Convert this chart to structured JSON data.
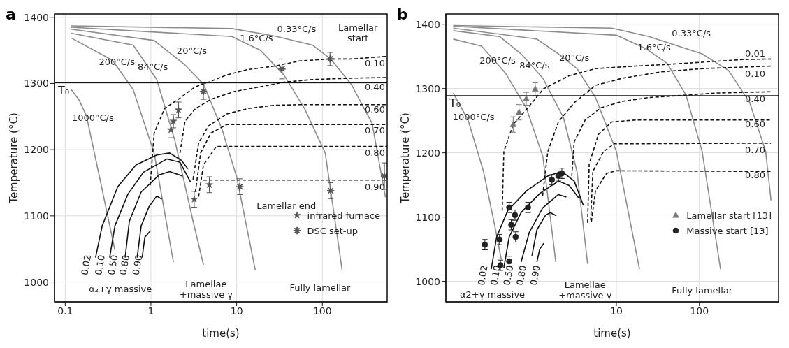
{
  "chart_data": [
    {
      "type": "line",
      "title": "a",
      "xlabel": "time(s)",
      "ylabel": "Temperature (°C)",
      "log": "x",
      "grid": true,
      "legend": "bottom right",
      "xlim": [
        0.075,
        570
      ],
      "xticks": [
        0.1,
        1,
        10,
        100
      ],
      "ylim": [
        970,
        1405
      ],
      "yticks": [
        1000,
        1100,
        1200,
        1300,
        1400
      ],
      "ref_lines": [
        {
          "axis": "y",
          "value": 1301,
          "label": "T₀",
          "color": "#111111"
        }
      ],
      "series": [
        {
          "color": "#8c8c8c",
          "x": [
            0.117,
            0.144,
            0.177,
            0.251,
            0.38
          ],
          "values": [
            1291,
            1276,
            1251,
            1159,
            1048
          ]
        },
        {
          "color": "#8c8c8c",
          "x": [
            0.117,
            0.356,
            0.62,
            1.09,
            1.83
          ],
          "values": [
            1369,
            1335,
            1291,
            1195,
            1030
          ]
        },
        {
          "color": "#8c8c8c",
          "x": [
            0.117,
            0.62,
            1.17,
            1.9,
            3.1,
            4.1
          ],
          "values": [
            1376,
            1358,
            1306,
            1214,
            1092,
            1026
          ]
        },
        {
          "color": "#8c8c8c",
          "x": [
            0.117,
            1.09,
            2.5,
            4.1,
            6.7,
            10,
            16.5
          ],
          "values": [
            1382,
            1365,
            1328,
            1299,
            1232,
            1159,
            1018
          ]
        },
        {
          "color": "#8c8c8c",
          "x": [
            0.117,
            8.8,
            19,
            35.5,
            62,
            108,
            170
          ],
          "values": [
            1385,
            1371,
            1350,
            1313,
            1262,
            1195,
            1018
          ]
        },
        {
          "color": "#8c8c8c",
          "x": [
            0.117,
            8.8,
            27,
            77,
            125,
            217,
            380,
            545
          ],
          "values": [
            1387,
            1383,
            1372,
            1358,
            1337,
            1299,
            1240,
            1128
          ]
        },
        {
          "color": "#111111",
          "line_style": "dashed",
          "x": [
            0.98,
            1.09,
            1.44,
            2.18,
            3.3,
            4.7,
            7.7,
            13.4,
            27,
            54,
            125,
            217,
            570
          ],
          "values": [
            1146,
            1225,
            1262,
            1278,
            1295,
            1302,
            1313,
            1321,
            1326,
            1334,
            1337,
            1337,
            1341
          ]
        },
        {
          "color": "#111111",
          "line_style": "dashed",
          "x": [
            2.18,
            2.5,
            3.3,
            5,
            9.5,
            19,
            35.5,
            77,
            217,
            570
          ],
          "values": [
            1195,
            1243,
            1262,
            1276,
            1288,
            1295,
            1302,
            1306,
            1308,
            1309
          ]
        },
        {
          "color": "#111111",
          "line_style": "dashed",
          "x": [
            3.1,
            3.6,
            4.7,
            7.7,
            13.4,
            27,
            54,
            570
          ],
          "values": [
            1155,
            1210,
            1236,
            1254,
            1262,
            1267,
            1268,
            1268
          ]
        },
        {
          "color": "#111111",
          "line_style": "dashed",
          "x": [
            3.3,
            3.8,
            5,
            7.7,
            570
          ],
          "values": [
            1136,
            1195,
            1225,
            1238,
            1238
          ]
        },
        {
          "color": "#111111",
          "line_style": "dashed",
          "x": [
            3.6,
            4.1,
            5.8,
            570
          ],
          "values": [
            1129,
            1177,
            1205,
            1205
          ]
        },
        {
          "color": "#111111",
          "line_style": "dashed",
          "x": [
            4.1,
            570
          ],
          "values": [
            1154,
            1154
          ]
        },
        {
          "color": "#111111",
          "x": [
            0.226,
            0.27,
            0.41,
            0.67,
            1.17,
            1.65,
            2.26,
            2.7
          ],
          "values": [
            1037,
            1085,
            1144,
            1177,
            1192,
            1195,
            1184,
            1171
          ]
        },
        {
          "color": "#111111",
          "x": [
            0.33,
            0.38,
            0.54,
            0.82,
            1.54,
            2.18,
            2.9
          ],
          "values": [
            1037,
            1085,
            1133,
            1166,
            1186,
            1181,
            1151
          ]
        },
        {
          "color": "#111111",
          "x": [
            0.5,
            0.56,
            0.77,
            1.25,
            1.65,
            2.34
          ],
          "values": [
            1037,
            1092,
            1136,
            1162,
            1167,
            1160
          ]
        },
        {
          "color": "#111111",
          "x": [
            0.69,
            0.77,
            0.95,
            1.17,
            1.34
          ],
          "values": [
            1037,
            1085,
            1114,
            1130,
            1125
          ]
        },
        {
          "color": "#111111",
          "x": [
            0.79,
            0.85,
            0.98
          ],
          "values": [
            1037,
            1068,
            1077
          ]
        },
        {
          "type": "scatter",
          "name": "infrared furnace",
          "marker": "star",
          "color": "#555555",
          "x": [
            1.71,
            1.83,
            2.1,
            3.2,
            4.8
          ],
          "values": [
            1230,
            1243,
            1260,
            1125,
            1147
          ],
          "errors": [
            12,
            10,
            12,
            12,
            12
          ]
        },
        {
          "type": "scatter",
          "name": "DSC set-up",
          "marker": "cross",
          "color": "#555555",
          "x": [
            4.1,
            10.9,
            33.8,
            123,
            125,
            530
          ],
          "values": [
            1288,
            1144,
            1322,
            1337,
            1138,
            1160
          ],
          "errors": [
            12,
            12,
            15,
            10,
            12,
            20
          ]
        }
      ],
      "annotations": [
        "1000°C/s",
        "200°C/s",
        "84°C/s",
        "20°C/s",
        "1.6°C/s",
        "0.33°C/s",
        "0.02",
        "0.10",
        "0.50",
        "0.80",
        "0.90",
        "0.10",
        "0.40",
        "0.60",
        "0.70",
        "0.80",
        "0.90",
        "α₂+γ massive",
        "Lamellae\n+massive γ",
        "Fully lamellar",
        "Lamellar\nstart",
        "Lamellar end"
      ]
    },
    {
      "type": "line",
      "title": "b",
      "xlabel": "time(s)",
      "ylabel": "Temperature (°C)",
      "log": "x",
      "grid": true,
      "legend": "bottom right",
      "xlim": [
        0.088,
        900
      ],
      "xticks": [
        10,
        100
      ],
      "ylim": [
        968,
        1416
      ],
      "yticks": [
        1000,
        1100,
        1200,
        1300,
        1400
      ],
      "ref_lines": [
        {
          "axis": "y",
          "value": 1289,
          "label": "T₀",
          "color": "#111111"
        }
      ],
      "series": [
        {
          "color": "#8c8c8c",
          "x": [
            0.108,
            0.163,
            0.25,
            0.34,
            0.41
          ],
          "values": [
            1293,
            1251,
            1171,
            1088,
            1034
          ]
        },
        {
          "color": "#8c8c8c",
          "x": [
            0.108,
            0.237,
            0.46,
            0.82,
            1.3,
            1.86
          ],
          "values": [
            1377,
            1366,
            1324,
            1270,
            1194,
            1030
          ]
        },
        {
          "color": "#8c8c8c",
          "x": [
            0.108,
            0.39,
            0.71,
            1.3,
            2.3,
            3.35,
            4.5
          ],
          "values": [
            1390,
            1381,
            1354,
            1316,
            1255,
            1171,
            1027
          ]
        },
        {
          "color": "#8c8c8c",
          "x": [
            0.108,
            1.1,
            2.0,
            3.35,
            5.6,
            10,
            19
          ],
          "values": [
            1394,
            1377,
            1354,
            1331,
            1286,
            1202,
            1019
          ]
        },
        {
          "color": "#8c8c8c",
          "x": [
            0.108,
            10,
            22.8,
            41,
            69,
            108,
            180
          ],
          "values": [
            1397,
            1383,
            1362,
            1339,
            1290,
            1202,
            1019
          ]
        },
        {
          "color": "#8c8c8c",
          "x": [
            0.108,
            8.8,
            24.6,
            108,
            225,
            405,
            630,
            730
          ],
          "values": [
            1398,
            1394,
            1381,
            1354,
            1328,
            1278,
            1202,
            1126
          ]
        },
        {
          "color": "#111111",
          "line_style": "dashed",
          "x": [
            0.42,
            0.44,
            0.57,
            0.82,
            1.2,
            1.3,
            2.7,
            5.6,
            17,
            35,
            108,
            325,
            730
          ],
          "values": [
            1110,
            1202,
            1244,
            1267,
            1293,
            1299,
            1320,
            1331,
            1335,
            1337,
            1341,
            1345,
            1346
          ]
        },
        {
          "color": "#111111",
          "line_style": "dashed",
          "x": [
            1.29,
            1.49,
            2.0,
            3.1,
            5.6,
            11.8,
            35,
            108,
            730
          ],
          "values": [
            1133,
            1202,
            1248,
            1278,
            1305,
            1316,
            1326,
            1331,
            1335
          ]
        },
        {
          "color": "#111111",
          "line_style": "dashed",
          "x": [
            2.9,
            3.1,
            4.2,
            6.5,
            11.8,
            24.6,
            74,
            155,
            730
          ],
          "values": [
            1164,
            1217,
            1251,
            1270,
            1280,
            1286,
            1290,
            1293,
            1295
          ]
        },
        {
          "color": "#111111",
          "line_style": "dashed",
          "x": [
            4.5,
            4.7,
            6.1,
            8.8,
            17,
            730
          ],
          "values": [
            1091,
            1183,
            1229,
            1248,
            1251,
            1251
          ]
        },
        {
          "color": "#111111",
          "line_style": "dashed",
          "x": [
            4.9,
            5.2,
            7,
            9.4,
            730
          ],
          "values": [
            1095,
            1171,
            1202,
            1214,
            1215
          ]
        },
        {
          "color": "#111111",
          "line_style": "dashed",
          "x": [
            5,
            5.6,
            7.6,
            10,
            730
          ],
          "values": [
            1093,
            1141,
            1168,
            1172,
            1171
          ]
        },
        {
          "color": "#111111",
          "x": [
            0.31,
            0.36,
            0.49,
            0.83,
            1.5,
            2.2,
            3.1,
            4
          ],
          "values": [
            1019,
            1069,
            1110,
            1141,
            1164,
            1171,
            1156,
            1118
          ]
        },
        {
          "color": "#111111",
          "x": [
            0.44,
            0.51,
            0.71,
            1.2,
            2.0,
            2.7,
            3.5
          ],
          "values": [
            1021,
            1069,
            1107,
            1137,
            1156,
            1149,
            1130
          ]
        },
        {
          "color": "#111111",
          "x": [
            0.71,
            0.89,
            1.29,
            2.0,
            2.5
          ],
          "values": [
            1030,
            1076,
            1114,
            1135,
            1131
          ]
        },
        {
          "color": "#111111",
          "x": [
            0.96,
            1.1,
            1.4,
            1.6,
            1.89
          ],
          "values": [
            1040,
            1080,
            1103,
            1107,
            1102
          ]
        },
        {
          "color": "#111111",
          "x": [
            1.1,
            1.19,
            1.33
          ],
          "values": [
            1030,
            1050,
            1059
          ]
        },
        {
          "type": "scatter",
          "name": "Lamellar start [13]",
          "marker": "triangle",
          "color": "#777777",
          "x": [
            0.57,
            0.67,
            0.82,
            1.05
          ],
          "values": [
            1244,
            1263,
            1284,
            1299
          ],
          "errors": [
            12,
            12,
            10,
            10
          ]
        },
        {
          "type": "scatter",
          "name": "Massive start [13]",
          "marker": "circle",
          "color": "#222222",
          "x": [
            0.26,
            0.39,
            0.4,
            0.51,
            0.51,
            0.54,
            0.6,
            0.61,
            0.86,
            1.67,
            2.0,
            2.2
          ],
          "values": [
            1057,
            1065,
            1025,
            1031,
            1115,
            1088,
            1103,
            1069,
            1115,
            1158,
            1164,
            1168
          ],
          "errors": [
            8,
            8,
            8,
            8,
            8,
            8,
            8,
            8,
            8,
            8,
            8,
            8
          ]
        }
      ],
      "annotations": [
        "1000°C/s",
        "200°C/s",
        "84°C/s",
        "20°C/s",
        "1.6°C/s",
        "0.33°C/s",
        "0.02",
        "0.10",
        "0.50",
        "0.80",
        "0.90",
        "0.01",
        "0.10",
        "0.40",
        "0.60",
        "0.70",
        "0.80",
        "α2+γ massive",
        "Lamellae\n+massive γ",
        "Fully lamellar"
      ]
    }
  ]
}
